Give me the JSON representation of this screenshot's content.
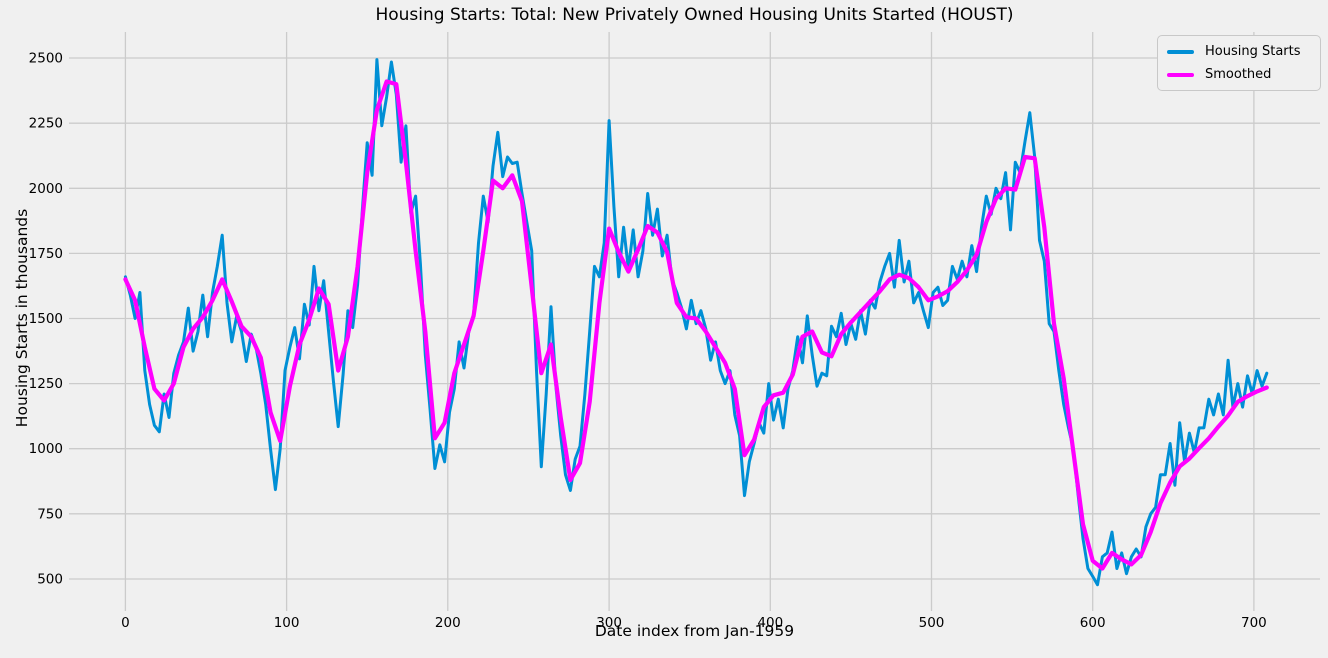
{
  "chart_data": {
    "type": "line",
    "title": "Housing Starts: Total: New Privately Owned Housing Units Started (HOUST)",
    "xlabel": "Date index from Jan-1959",
    "ylabel": "Housing Starts in thousands",
    "x_ticks": [
      0,
      100,
      200,
      300,
      400,
      500,
      600,
      700
    ],
    "y_ticks": [
      500,
      750,
      1000,
      1250,
      1500,
      1750,
      2000,
      2250,
      2500
    ],
    "xlim": [
      -35,
      741
    ],
    "ylim": [
      400,
      2600
    ],
    "grid": true,
    "legend_position": "upper right",
    "background_color": "#f0f0f0",
    "grid_color": "#cbcbcb",
    "text_color": "#000000",
    "x_start": 0,
    "x_units": "months since Jan-1959",
    "y_units": "thousands of units",
    "series": [
      {
        "name": "Housing Starts",
        "color": "#008fd5",
        "line_width": 3,
        "x_step": 3,
        "values": [
          1660,
          1590,
          1500,
          1600,
          1300,
          1170,
          1090,
          1065,
          1210,
          1120,
          1290,
          1360,
          1410,
          1540,
          1375,
          1450,
          1590,
          1430,
          1600,
          1700,
          1820,
          1560,
          1410,
          1510,
          1450,
          1335,
          1440,
          1390,
          1290,
          1170,
          1000,
          843,
          1000,
          1300,
          1390,
          1465,
          1345,
          1555,
          1475,
          1700,
          1530,
          1645,
          1450,
          1260,
          1085,
          1285,
          1530,
          1465,
          1630,
          1920,
          2175,
          2050,
          2494,
          2240,
          2350,
          2485,
          2360,
          2100,
          2240,
          1905,
          1970,
          1710,
          1360,
          1150,
          924,
          1015,
          950,
          1140,
          1230,
          1410,
          1310,
          1450,
          1515,
          1790,
          1970,
          1870,
          2085,
          2215,
          2045,
          2120,
          2095,
          2100,
          1980,
          1870,
          1760,
          1300,
          931,
          1210,
          1545,
          1240,
          1050,
          900,
          840,
          960,
          1010,
          1210,
          1450,
          1700,
          1660,
          1790,
          2260,
          1930,
          1660,
          1850,
          1690,
          1840,
          1660,
          1760,
          1980,
          1820,
          1920,
          1740,
          1820,
          1650,
          1600,
          1540,
          1460,
          1570,
          1480,
          1530,
          1460,
          1340,
          1410,
          1300,
          1250,
          1300,
          1130,
          1050,
          820,
          950,
          1020,
          1100,
          1060,
          1250,
          1110,
          1190,
          1080,
          1230,
          1300,
          1430,
          1330,
          1510,
          1360,
          1240,
          1290,
          1280,
          1470,
          1430,
          1520,
          1400,
          1480,
          1420,
          1530,
          1440,
          1570,
          1540,
          1640,
          1700,
          1750,
          1620,
          1800,
          1640,
          1720,
          1560,
          1600,
          1530,
          1465,
          1600,
          1620,
          1550,
          1570,
          1700,
          1650,
          1720,
          1660,
          1780,
          1680,
          1850,
          1970,
          1900,
          2000,
          1960,
          2060,
          1840,
          2100,
          2060,
          2180,
          2290,
          2120,
          1800,
          1720,
          1480,
          1450,
          1300,
          1170,
          1080,
          1000,
          820,
          655,
          540,
          510,
          478,
          585,
          600,
          680,
          540,
          600,
          520,
          585,
          615,
          585,
          700,
          750,
          775,
          900,
          900,
          1020,
          860,
          1100,
          950,
          1060,
          985,
          1080,
          1080,
          1190,
          1130,
          1210,
          1130,
          1340,
          1160,
          1250,
          1160,
          1280,
          1210,
          1300,
          1240,
          1290
        ]
      },
      {
        "name": "Smoothed",
        "color": "#ff00ff",
        "line_width": 4.2,
        "x_step": 6,
        "values": [
          1650,
          1570,
          1390,
          1230,
          1185,
          1250,
          1390,
          1460,
          1505,
          1570,
          1650,
          1565,
          1470,
          1430,
          1350,
          1140,
          1030,
          1240,
          1400,
          1495,
          1615,
          1555,
          1300,
          1430,
          1700,
          2060,
          2300,
          2410,
          2400,
          2100,
          1760,
          1450,
          1040,
          1100,
          1290,
          1400,
          1510,
          1760,
          2030,
          2000,
          2050,
          1950,
          1620,
          1290,
          1400,
          1120,
          880,
          945,
          1180,
          1560,
          1845,
          1755,
          1680,
          1765,
          1855,
          1830,
          1755,
          1560,
          1505,
          1500,
          1450,
          1390,
          1330,
          1230,
          975,
          1035,
          1160,
          1205,
          1215,
          1285,
          1430,
          1450,
          1370,
          1355,
          1440,
          1485,
          1525,
          1565,
          1605,
          1650,
          1668,
          1655,
          1620,
          1570,
          1585,
          1605,
          1640,
          1685,
          1745,
          1870,
          1960,
          2000,
          1995,
          2120,
          2115,
          1850,
          1480,
          1270,
          990,
          710,
          570,
          540,
          600,
          575,
          556,
          592,
          680,
          790,
          870,
          932,
          962,
          1002,
          1040,
          1085,
          1127,
          1180,
          1202,
          1220,
          1235
        ]
      }
    ]
  },
  "legend": {
    "items": [
      {
        "label": "Housing Starts",
        "color": "#008fd5"
      },
      {
        "label": "Smoothed",
        "color": "#ff00ff"
      }
    ]
  }
}
